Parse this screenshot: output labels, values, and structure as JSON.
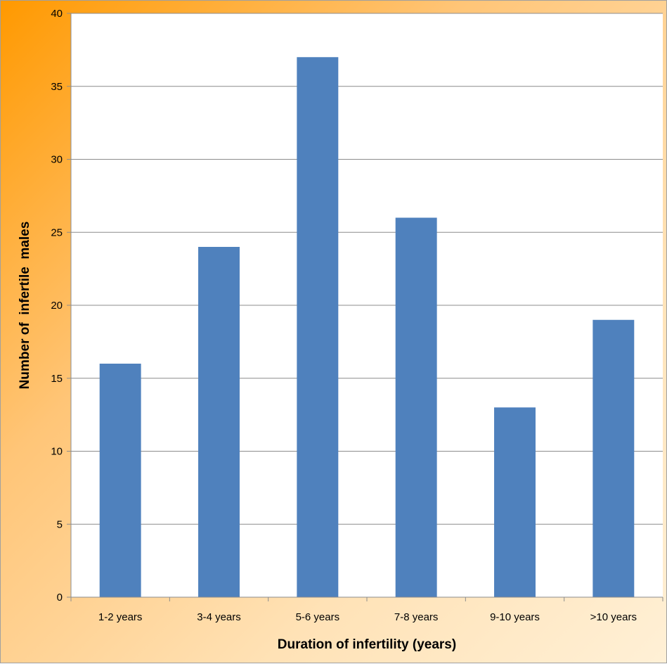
{
  "chart_data": {
    "type": "bar",
    "categories": [
      "1-2 years",
      "3-4 years",
      "5-6 years",
      "7-8 years",
      "9-10 years",
      ">10 years"
    ],
    "values": [
      16,
      24,
      37,
      26,
      13,
      19
    ],
    "title": "",
    "xlabel": "Duration of infertility (years)",
    "ylabel": "Number of  infertile  males",
    "ylim": [
      0,
      40
    ],
    "yticks": [
      0,
      5,
      10,
      15,
      20,
      25,
      30,
      35,
      40
    ],
    "grid": true,
    "legend": "none",
    "bar_color": "#4f81bd",
    "background_gradient": [
      "#ff9900",
      "#fff0d6"
    ]
  }
}
